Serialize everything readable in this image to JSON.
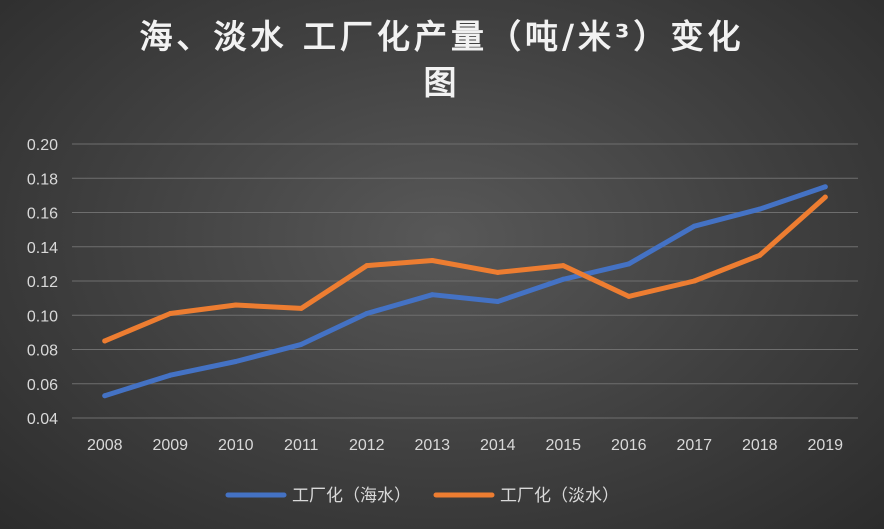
{
  "chart_data": {
    "type": "line",
    "title": "海、淡水 工厂化产量（吨/米³）变化图",
    "title_lines": [
      "海、淡水 工厂化产量（吨/米³）变化",
      "图"
    ],
    "xlabel": "",
    "ylabel": "",
    "categories": [
      "2008",
      "2009",
      "2010",
      "2011",
      "2012",
      "2013",
      "2014",
      "2015",
      "2016",
      "2017",
      "2018",
      "2019"
    ],
    "ylim": [
      0.04,
      0.2
    ],
    "yticks": [
      "0.04",
      "0.06",
      "0.08",
      "0.10",
      "0.12",
      "0.14",
      "0.16",
      "0.18",
      "0.20"
    ],
    "grid": true,
    "legend_position": "bottom",
    "series": [
      {
        "name": "工厂化（海水）",
        "color": "#4472c4",
        "values": [
          0.053,
          0.065,
          0.073,
          0.083,
          0.101,
          0.112,
          0.108,
          0.121,
          0.13,
          0.152,
          0.162,
          0.175
        ]
      },
      {
        "name": "工厂化（淡水）",
        "color": "#ed7d31",
        "values": [
          0.085,
          0.101,
          0.106,
          0.104,
          0.129,
          0.132,
          0.125,
          0.129,
          0.111,
          0.12,
          0.135,
          0.169
        ]
      }
    ]
  }
}
